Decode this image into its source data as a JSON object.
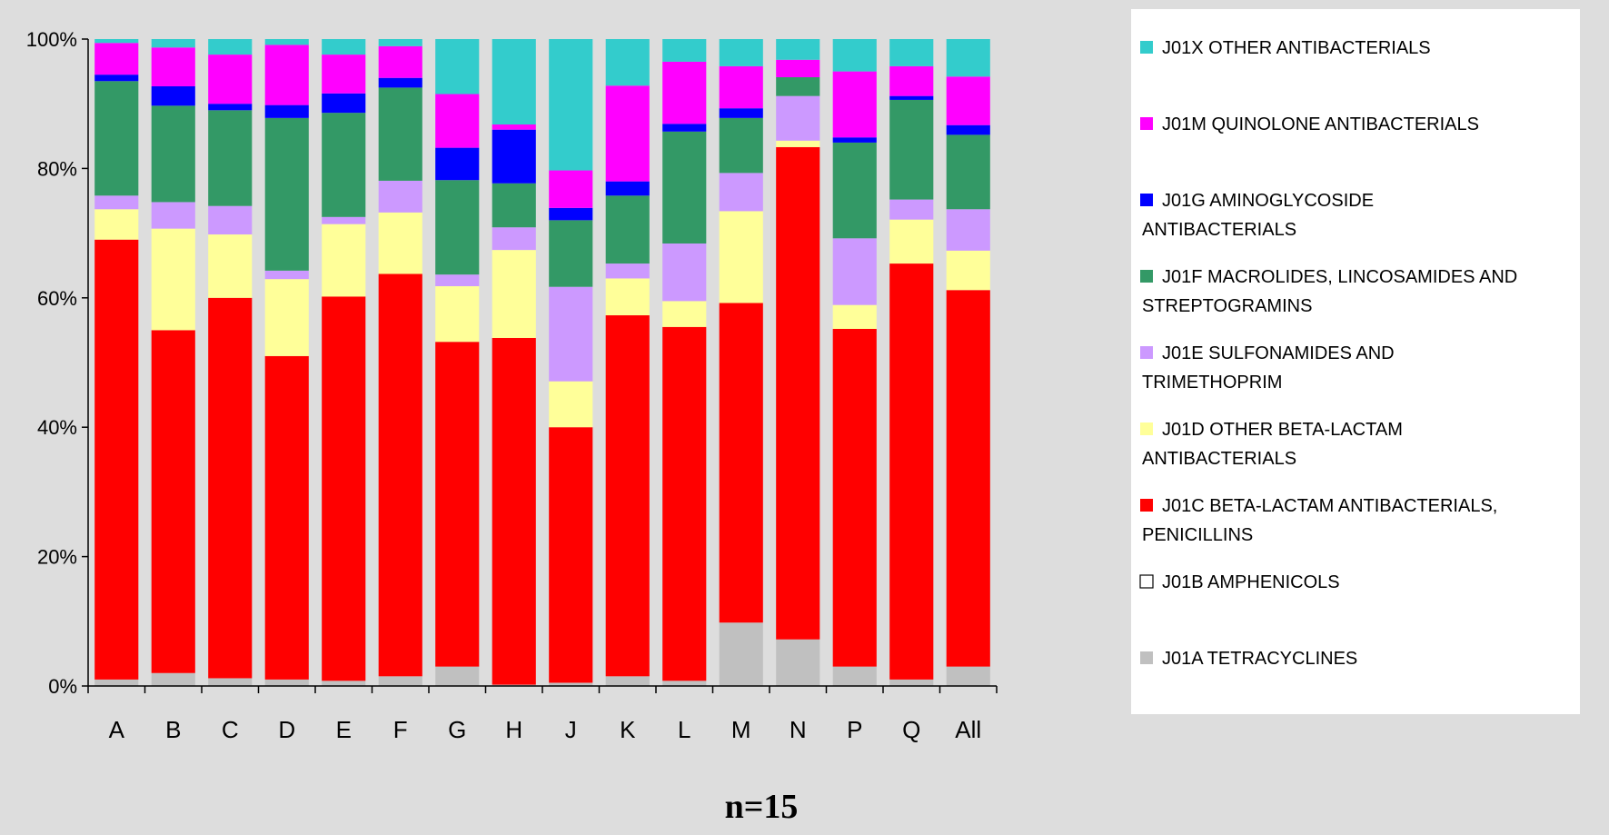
{
  "chart_data": {
    "type": "bar",
    "stacked": true,
    "percent": true,
    "categories": [
      "A",
      "B",
      "C",
      "D",
      "E",
      "F",
      "G",
      "H",
      "J",
      "K",
      "L",
      "M",
      "N",
      "P",
      "Q",
      "All"
    ],
    "y_tick_labels": [
      "0%",
      "20%",
      "40%",
      "60%",
      "80%",
      "100%"
    ],
    "ylim": [
      0,
      100
    ],
    "grid": false,
    "legend_position": "right",
    "note": "n=15",
    "series": [
      {
        "name": "J01A TETRACYCLINES",
        "color": "#C0C0C0",
        "values": [
          1.0,
          2.0,
          1.2,
          1.0,
          0.8,
          1.5,
          3.0,
          0.2,
          0.5,
          1.5,
          0.8,
          9.8,
          7.2,
          3.0,
          1.0,
          3.0
        ]
      },
      {
        "name": "J01B AMPHENICOLS",
        "color": "#FFFFFF",
        "values": [
          0,
          0,
          0,
          0,
          0,
          0,
          0,
          0,
          0,
          0,
          0,
          0,
          0,
          0,
          0,
          0
        ]
      },
      {
        "name": "J01C BETA-LACTAM ANTIBACTERIALS, PENICILLINS",
        "color": "#FF0000",
        "values": [
          68.0,
          53.0,
          58.8,
          50.0,
          59.4,
          62.2,
          50.2,
          53.6,
          39.5,
          55.8,
          54.7,
          49.4,
          76.1,
          52.2,
          64.3,
          58.2
        ]
      },
      {
        "name": "J01D OTHER BETA-LACTAM ANTIBACTERIALS",
        "color": "#FFFF99",
        "values": [
          4.7,
          15.7,
          9.8,
          11.9,
          11.2,
          9.5,
          8.6,
          13.6,
          7.1,
          5.7,
          4.0,
          14.2,
          1.0,
          3.7,
          6.8,
          6.1
        ]
      },
      {
        "name": "J01E SULFONAMIDES AND TRIMETHOPRIM",
        "color": "#CC99FF",
        "values": [
          2.1,
          4.1,
          4.4,
          1.3,
          1.1,
          4.9,
          1.8,
          3.5,
          14.6,
          2.3,
          8.9,
          5.9,
          6.9,
          10.3,
          3.1,
          6.4
        ]
      },
      {
        "name": "J01F MACROLIDES, LINCOSAMIDES AND STREPTOGRAMINS",
        "color": "#339966",
        "values": [
          17.7,
          14.9,
          14.8,
          23.6,
          16.1,
          14.4,
          14.6,
          6.8,
          10.3,
          10.5,
          17.3,
          8.5,
          2.9,
          14.8,
          15.4,
          11.5
        ]
      },
      {
        "name": "J01G AMINOGLYCOSIDE ANTIBACTERIALS",
        "color": "#0000FF",
        "values": [
          1.0,
          3.0,
          1.0,
          2.0,
          3.0,
          1.5,
          5.0,
          8.3,
          1.9,
          2.2,
          1.2,
          1.5,
          0,
          0.8,
          0.6,
          1.5
        ]
      },
      {
        "name": "J01M QUINOLONE ANTIBACTERIALS",
        "color": "#FF00FF",
        "values": [
          4.9,
          6.0,
          7.6,
          9.3,
          6.0,
          4.9,
          8.3,
          0.8,
          5.8,
          14.8,
          9.6,
          6.5,
          2.7,
          10.2,
          4.6,
          7.5
        ]
      },
      {
        "name": "J01X OTHER ANTIBACTERIALS",
        "color": "#33CCCC",
        "values": [
          0.6,
          1.3,
          2.4,
          0.9,
          2.4,
          1.1,
          8.5,
          13.2,
          20.3,
          7.2,
          3.5,
          4.2,
          3.2,
          5.0,
          4.2,
          5.8
        ]
      }
    ],
    "legend": [
      {
        "series_index": 8,
        "lines": [
          "J01X OTHER ANTIBACTERIALS"
        ]
      },
      {
        "series_index": 7,
        "lines": [
          "J01M QUINOLONE ANTIBACTERIALS"
        ]
      },
      {
        "series_index": 6,
        "lines": [
          "J01G AMINOGLYCOSIDE",
          "ANTIBACTERIALS"
        ]
      },
      {
        "series_index": 5,
        "lines": [
          "J01F MACROLIDES, LINCOSAMIDES AND",
          "STREPTOGRAMINS"
        ]
      },
      {
        "series_index": 4,
        "lines": [
          "J01E SULFONAMIDES AND",
          "TRIMETHOPRIM"
        ]
      },
      {
        "series_index": 3,
        "lines": [
          "J01D OTHER BETA-LACTAM",
          "ANTIBACTERIALS"
        ]
      },
      {
        "series_index": 2,
        "lines": [
          "J01C BETA-LACTAM ANTIBACTERIALS,",
          "PENICILLINS"
        ]
      },
      {
        "series_index": 1,
        "lines": [
          "J01B AMPHENICOLS"
        ]
      },
      {
        "series_index": 0,
        "lines": [
          "J01A TETRACYCLINES"
        ]
      }
    ],
    "colors": {
      "chart_background": "#DDDDDD",
      "legend_background": "#FFFFFF",
      "axis": "#000000"
    }
  }
}
